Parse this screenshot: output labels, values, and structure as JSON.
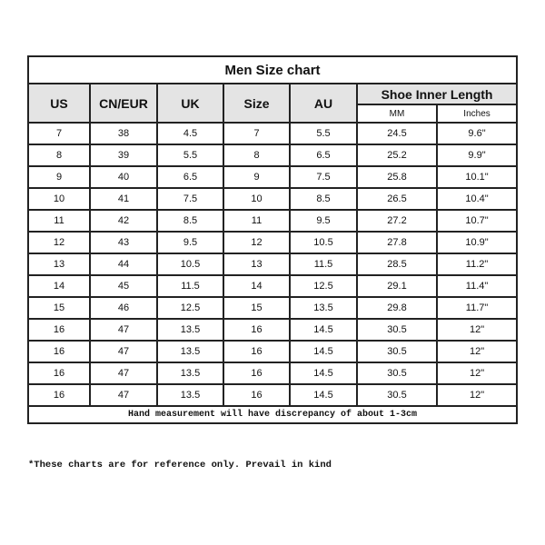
{
  "title": "Men Size chart",
  "headers": {
    "us": "US",
    "cn_eur": "CN/EUR",
    "uk": "UK",
    "size": "Size",
    "au": "AU",
    "shoe_inner_length": "Shoe Inner Length",
    "mm": "MM",
    "inches": "Inches"
  },
  "rows": [
    [
      "7",
      "38",
      "4.5",
      "7",
      "5.5",
      "24.5",
      "9.6\""
    ],
    [
      "8",
      "39",
      "5.5",
      "8",
      "6.5",
      "25.2",
      "9.9\""
    ],
    [
      "9",
      "40",
      "6.5",
      "9",
      "7.5",
      "25.8",
      "10.1\""
    ],
    [
      "10",
      "41",
      "7.5",
      "10",
      "8.5",
      "26.5",
      "10.4\""
    ],
    [
      "11",
      "42",
      "8.5",
      "11",
      "9.5",
      "27.2",
      "10.7\""
    ],
    [
      "12",
      "43",
      "9.5",
      "12",
      "10.5",
      "27.8",
      "10.9\""
    ],
    [
      "13",
      "44",
      "10.5",
      "13",
      "11.5",
      "28.5",
      "11.2\""
    ],
    [
      "14",
      "45",
      "11.5",
      "14",
      "12.5",
      "29.1",
      "11.4\""
    ],
    [
      "15",
      "46",
      "12.5",
      "15",
      "13.5",
      "29.8",
      "11.7\""
    ],
    [
      "16",
      "47",
      "13.5",
      "16",
      "14.5",
      "30.5",
      "12\""
    ],
    [
      "16",
      "47",
      "13.5",
      "16",
      "14.5",
      "30.5",
      "12\""
    ],
    [
      "16",
      "47",
      "13.5",
      "16",
      "14.5",
      "30.5",
      "12\""
    ],
    [
      "16",
      "47",
      "13.5",
      "16",
      "14.5",
      "30.5",
      "12\""
    ]
  ],
  "footer": "Hand measurement will have discrepancy of about 1-3cm",
  "note": "*These charts are for reference only. Prevail in kind"
}
